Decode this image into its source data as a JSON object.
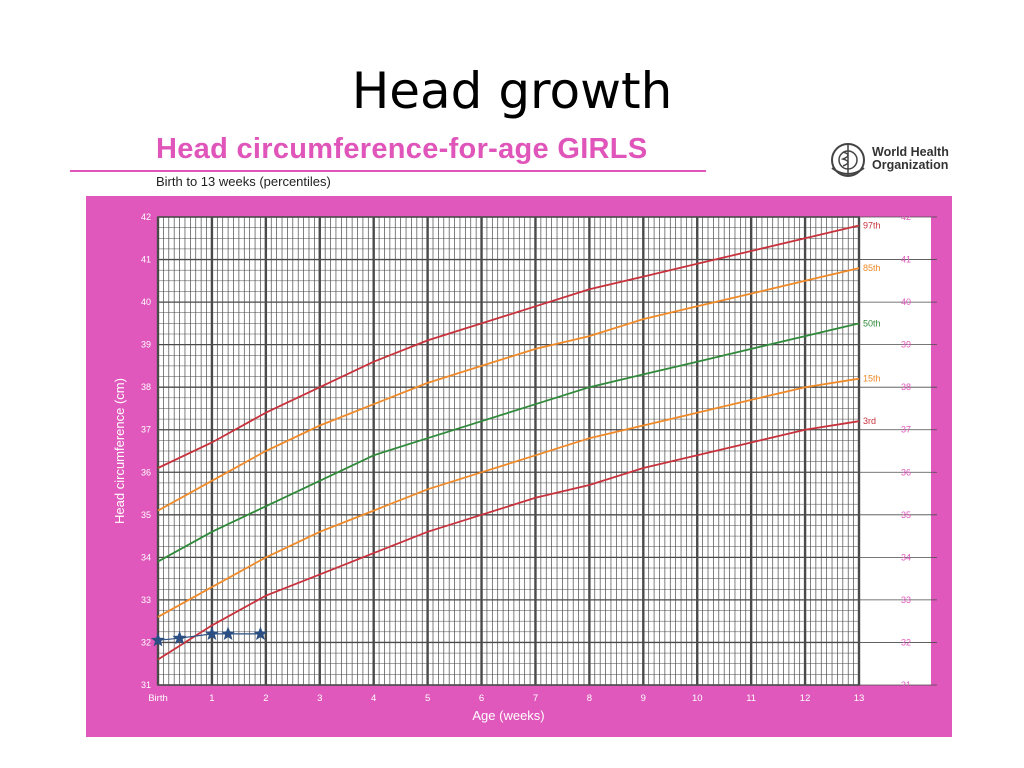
{
  "slide": {
    "title": "Head growth"
  },
  "header": {
    "chart_title": "Head circumference-for-age  GIRLS",
    "chart_subtitle": "Birth to 13 weeks (percentiles)",
    "org_line1": "World Health",
    "org_line2": "Organization"
  },
  "colors": {
    "frame": "#e058bc",
    "grid": "#4a4a4a",
    "p97": "#c8323c",
    "p85": "#f08a28",
    "p50": "#2f8a3a",
    "p15": "#f08a28",
    "p3": "#c8323c",
    "patient": "#2b4f82"
  },
  "chart_data": {
    "type": "line",
    "title": "Head circumference-for-age  GIRLS",
    "subtitle": "Birth to 13 weeks (percentiles)",
    "xlabel": "Age (weeks)",
    "ylabel": "Head circumference (cm)",
    "xlim": [
      0,
      13
    ],
    "ylim": [
      31,
      42
    ],
    "grid": true,
    "x_tick_labels": [
      "Birth",
      "1",
      "2",
      "3",
      "4",
      "5",
      "6",
      "7",
      "8",
      "9",
      "10",
      "11",
      "12",
      "13"
    ],
    "y_tick_labels": [
      "31",
      "32",
      "33",
      "34",
      "35",
      "36",
      "37",
      "38",
      "39",
      "40",
      "41",
      "42"
    ],
    "x": [
      0,
      1,
      2,
      3,
      4,
      5,
      6,
      7,
      8,
      9,
      10,
      11,
      12,
      13
    ],
    "series": [
      {
        "name": "97th",
        "color": "#c8323c",
        "values": [
          36.1,
          36.7,
          37.4,
          38.0,
          38.6,
          39.1,
          39.5,
          39.9,
          40.3,
          40.6,
          40.9,
          41.2,
          41.5,
          41.8
        ]
      },
      {
        "name": "85th",
        "color": "#f08a28",
        "values": [
          35.1,
          35.8,
          36.5,
          37.1,
          37.6,
          38.1,
          38.5,
          38.9,
          39.2,
          39.6,
          39.9,
          40.2,
          40.5,
          40.8
        ]
      },
      {
        "name": "50th",
        "color": "#2f8a3a",
        "values": [
          33.9,
          34.6,
          35.2,
          35.8,
          36.4,
          36.8,
          37.2,
          37.6,
          38.0,
          38.3,
          38.6,
          38.9,
          39.2,
          39.5
        ]
      },
      {
        "name": "15th",
        "color": "#f08a28",
        "values": [
          32.6,
          33.3,
          34.0,
          34.6,
          35.1,
          35.6,
          36.0,
          36.4,
          36.8,
          37.1,
          37.4,
          37.7,
          38.0,
          38.2
        ]
      },
      {
        "name": "3rd",
        "color": "#c8323c",
        "values": [
          31.6,
          32.4,
          33.1,
          33.6,
          34.1,
          34.6,
          35.0,
          35.4,
          35.7,
          36.1,
          36.4,
          36.7,
          37.0,
          37.2
        ]
      }
    ],
    "patient_points": {
      "x": [
        0.0,
        0.4,
        1.0,
        1.3,
        1.9
      ],
      "y": [
        32.05,
        32.1,
        32.2,
        32.2,
        32.2
      ],
      "marker": "star"
    }
  }
}
